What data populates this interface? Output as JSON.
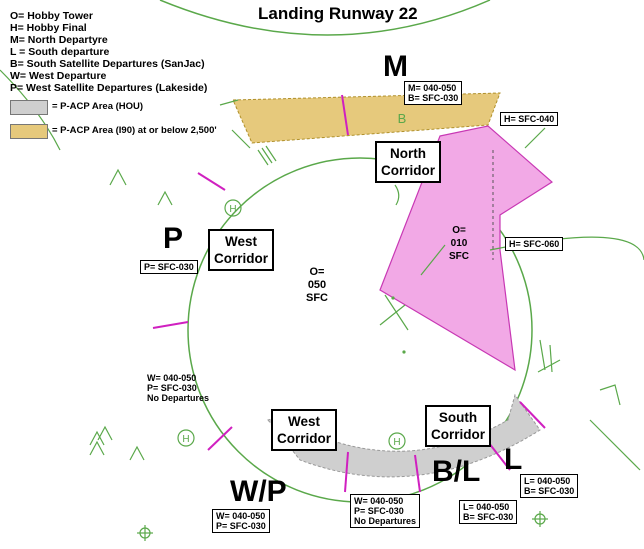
{
  "title": "Landing Runway 22",
  "legend": {
    "lines": [
      "O= Hobby Tower",
      "H= Hobby Final",
      "M= North Departyre",
      "L = South departure",
      "B= South Satellite Departures (SanJac)",
      "W= West Departure",
      "P= West Satellite Departures (Lakeside)"
    ],
    "swatches": [
      {
        "label": "= P-ACP Area (HOU)",
        "color": "#cfcfcf"
      },
      {
        "label": "= P-ACP Area (I90) at or below 2,500'",
        "color": "#e6c97c"
      }
    ]
  },
  "big_letters": {
    "m": "M",
    "p": "P",
    "wp": "W/P",
    "bl": "B/L",
    "l": "L"
  },
  "corridors": {
    "north": [
      "North",
      "Corridor"
    ],
    "west_upper": [
      "West",
      "Corridor"
    ],
    "west_lower": [
      "West",
      "Corridor"
    ],
    "south": [
      "South",
      "Corridor"
    ]
  },
  "tags": {
    "m": [
      "M= 040-050",
      "B= SFC-030"
    ],
    "h_north": [
      "H= SFC-040"
    ],
    "h_east": [
      "H= SFC-060"
    ],
    "p": [
      "P= SFC-030"
    ],
    "w_left": [
      "W= 040-050",
      "P= SFC-030",
      "No Departures"
    ],
    "w_bottom": [
      "W= 040-050",
      "P= SFC-030",
      "No Departures"
    ],
    "wp": [
      "W= 040-050",
      "P= SFC-030"
    ],
    "bl": [
      "L= 040-050",
      "B= SFC-030"
    ],
    "l": [
      "L= 040-050",
      "B= SFC-030"
    ]
  },
  "center_labels": {
    "tower": [
      "O=",
      "050",
      "SFC"
    ],
    "pink": [
      "O=",
      "010",
      "SFC"
    ]
  },
  "map_text": {
    "hobby_final": "H",
    "b_mark": "B"
  },
  "colors": {
    "airspace_ring": "#5aa84a",
    "pink_area": "#f2a9e6",
    "pink_stroke": "#c838b4",
    "gold_area": "#e6c97c",
    "gray_area": "#cfcfcf",
    "boundary_tick": "#d020c0"
  }
}
